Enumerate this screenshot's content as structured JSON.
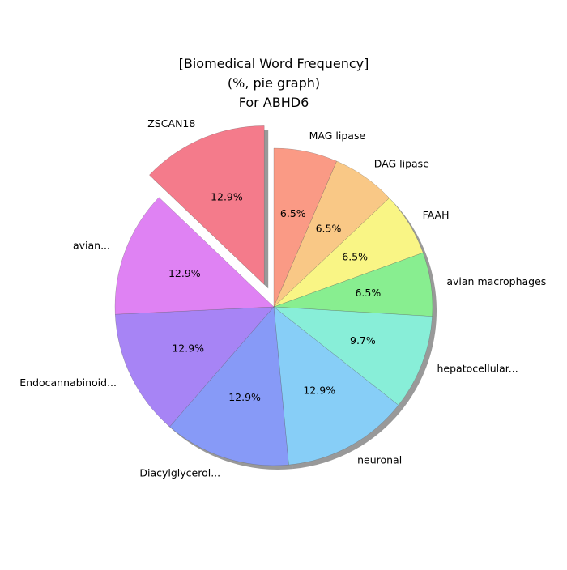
{
  "chart_data": {
    "type": "pie",
    "title_lines": [
      "[Biomedical Word Frequency]",
      "(%, pie graph)",
      "For ABHD6"
    ],
    "slices": [
      {
        "label": "MAG lipase",
        "value": 6.5,
        "pct_text": "6.5%",
        "color": "#FA9A85"
      },
      {
        "label": "DAG lipase",
        "value": 6.5,
        "pct_text": "6.5%",
        "color": "#F9C886"
      },
      {
        "label": "FAAH",
        "value": 6.5,
        "pct_text": "6.5%",
        "color": "#F9F585"
      },
      {
        "label": "avian macrophages",
        "value": 6.5,
        "pct_text": "6.5%",
        "color": "#88EE90"
      },
      {
        "label": "hepatocellular...",
        "value": 9.7,
        "pct_text": "9.7%",
        "color": "#88EED8"
      },
      {
        "label": "neuronal",
        "value": 12.9,
        "pct_text": "12.9%",
        "color": "#87CEF7"
      },
      {
        "label": "Diacylglycerol...",
        "value": 12.9,
        "pct_text": "12.9%",
        "color": "#879AF7"
      },
      {
        "label": "Endocannabinoid...",
        "value": 12.9,
        "pct_text": "12.9%",
        "color": "#A784F5"
      },
      {
        "label": "avian...",
        "value": 12.9,
        "pct_text": "12.9%",
        "color": "#DF82F3"
      },
      {
        "label": "ZSCAN18",
        "value": 12.9,
        "pct_text": "12.9%",
        "color": "#F47B8B",
        "exploded": true
      }
    ],
    "start_angle_deg": 90,
    "direction": "clockwise",
    "shadow": true,
    "legend": "none"
  }
}
